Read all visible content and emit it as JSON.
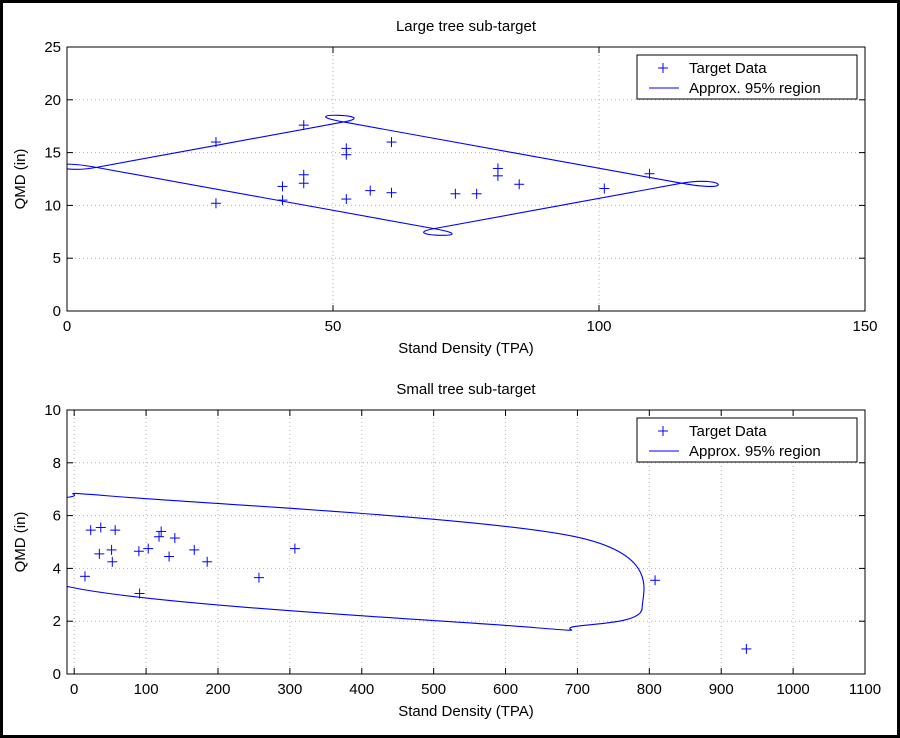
{
  "chart_data": [
    {
      "type": "scatter",
      "title": "Large tree sub-target",
      "xlabel": "Stand Density (TPA)",
      "ylabel": "QMD (in)",
      "xlim": [
        0,
        150
      ],
      "ylim": [
        0,
        25
      ],
      "xticks": [
        0,
        50,
        100,
        150
      ],
      "yticks": [
        0,
        5,
        10,
        15,
        20,
        25
      ],
      "grid": true,
      "legend_position": "top-right",
      "legend": [
        "Target Data",
        "Approx. 95% region"
      ],
      "series": [
        {
          "name": "Target Data",
          "marker": "+",
          "color": "#0000ff",
          "x": [
            28,
            28,
            40.5,
            40.5,
            44.5,
            44.5,
            44.5,
            52.5,
            52.5,
            52.5,
            57,
            61,
            61,
            73,
            77,
            81,
            81,
            85,
            101,
            109.5
          ],
          "y": [
            16,
            10.2,
            11.8,
            10.5,
            17.6,
            12.9,
            12.1,
            15.4,
            14.8,
            10.6,
            11.4,
            16,
            11.2,
            11.1,
            11.1,
            13.5,
            12.8,
            12,
            11.6,
            13
          ]
        },
        {
          "name": "Approx. 95% region",
          "shape": "ellipse",
          "color": "#0000ff",
          "center": [
            60.5,
            12.85
          ],
          "points": [
            [
              5.5,
              13.6
            ],
            [
              52,
              17.9
            ],
            [
              115.5,
              12.1
            ],
            [
              69,
              7.8
            ]
          ]
        }
      ]
    },
    {
      "type": "scatter",
      "title": "Small tree sub-target",
      "xlabel": "Stand Density (TPA)",
      "ylabel": "QMD (in)",
      "xlim": [
        -10,
        1100
      ],
      "ylim": [
        0,
        10
      ],
      "xticks": [
        0,
        100,
        200,
        300,
        400,
        500,
        600,
        700,
        800,
        900,
        1000,
        1100
      ],
      "yticks": [
        0,
        2,
        4,
        6,
        8,
        10
      ],
      "grid": true,
      "legend_position": "top-right",
      "legend": [
        "Target Data",
        "Approx. 95% region"
      ],
      "series": [
        {
          "name": "Target Data",
          "marker": "+",
          "color": "#0000ff",
          "x": [
            15,
            23,
            35,
            37,
            52,
            53,
            57,
            90,
            91,
            103,
            118,
            121,
            132,
            140,
            167,
            185,
            257,
            307,
            808,
            935
          ],
          "y": [
            3.7,
            5.45,
            4.55,
            5.55,
            4.7,
            4.25,
            5.45,
            4.65,
            3.05,
            4.75,
            5.2,
            5.4,
            4.45,
            5.15,
            4.7,
            4.25,
            3.65,
            4.75,
            3.55,
            0.95
          ]
        },
        {
          "name": "Approx. 95% region",
          "shape": "ellipse",
          "color": "#0000ff",
          "center": [
            345,
            4.25
          ],
          "points": [
            [
              -7,
              6.7
            ],
            [
              -7,
              3.3
            ],
            [
              620,
              1.8
            ],
            [
              790,
              2.5
            ]
          ]
        }
      ]
    }
  ]
}
